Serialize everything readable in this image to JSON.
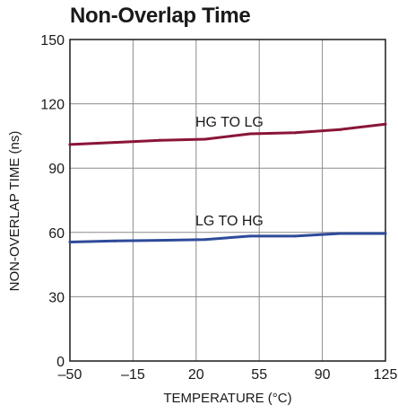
{
  "chart_data": {
    "type": "line",
    "title": "Non-Overlap Time",
    "xlabel": "TEMPERATURE (°C)",
    "ylabel": "NON-OVERLAP TIME (ns)",
    "xlim": [
      -50,
      125
    ],
    "ylim": [
      0,
      150
    ],
    "xticks": [
      -50,
      -15,
      20,
      55,
      90,
      125
    ],
    "xtick_labels": [
      "–50",
      "–15",
      "20",
      "55",
      "90",
      "125"
    ],
    "yticks": [
      0,
      30,
      60,
      90,
      120,
      150
    ],
    "ytick_labels": [
      "0",
      "30",
      "60",
      "90",
      "120",
      "150"
    ],
    "grid": true,
    "legend": "none",
    "series": [
      {
        "name": "HG TO LG",
        "color": "#8a1538",
        "x": [
          -50,
          -25,
          0,
          25,
          50,
          75,
          100,
          125
        ],
        "y": [
          101,
          102,
          103,
          103.5,
          106,
          106.5,
          108,
          110.5
        ]
      },
      {
        "name": "LG TO HG",
        "color": "#2e4a9a",
        "x": [
          -50,
          -25,
          0,
          25,
          50,
          75,
          100,
          125
        ],
        "y": [
          55.5,
          56,
          56.3,
          56.7,
          58.3,
          58.3,
          59.5,
          59.5
        ]
      }
    ]
  }
}
